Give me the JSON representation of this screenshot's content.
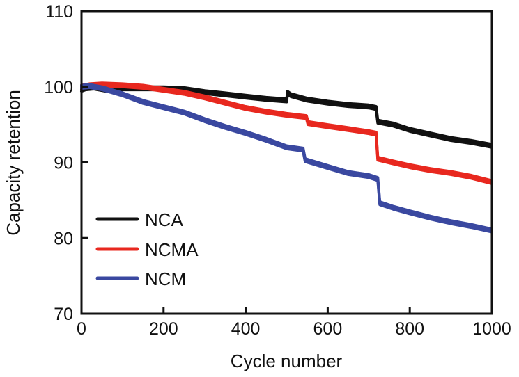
{
  "chart_data": {
    "type": "line",
    "title": "",
    "xlabel": "Cycle number",
    "ylabel": "Capacity retention",
    "xlim": [
      0,
      1000
    ],
    "ylim": [
      70,
      110
    ],
    "xticks": [
      0,
      200,
      400,
      600,
      800,
      1000
    ],
    "yticks": [
      70,
      80,
      90,
      100,
      110
    ],
    "grid": false,
    "legend_position": "lower-left",
    "series": [
      {
        "name": "NCA",
        "color": "#111111",
        "x": [
          0,
          10,
          30,
          50,
          80,
          100,
          150,
          200,
          250,
          300,
          350,
          400,
          450,
          500,
          502,
          510,
          550,
          600,
          650,
          700,
          718,
          722,
          760,
          800,
          850,
          900,
          950,
          1000
        ],
        "y": [
          99.6,
          99.8,
          99.9,
          99.7,
          99.4,
          99.8,
          99.8,
          99.8,
          99.7,
          99.3,
          99.0,
          98.7,
          98.4,
          98.2,
          99.2,
          98.9,
          98.3,
          97.9,
          97.6,
          97.4,
          97.2,
          95.4,
          95.0,
          94.3,
          93.7,
          93.1,
          92.7,
          92.2
        ]
      },
      {
        "name": "NCMA",
        "color": "#e8281f",
        "x": [
          0,
          20,
          50,
          100,
          150,
          200,
          250,
          300,
          350,
          400,
          450,
          500,
          548,
          552,
          600,
          650,
          700,
          718,
          722,
          760,
          800,
          850,
          900,
          950,
          1000
        ],
        "y": [
          100.0,
          100.2,
          100.3,
          100.2,
          100.0,
          99.6,
          99.2,
          98.6,
          97.9,
          97.2,
          96.7,
          96.3,
          96.0,
          95.2,
          94.8,
          94.4,
          94.0,
          93.8,
          90.5,
          90.0,
          89.5,
          89.0,
          88.6,
          88.1,
          87.4
        ]
      },
      {
        "name": "NCM",
        "color": "#3a48a0",
        "x": [
          0,
          20,
          50,
          100,
          150,
          200,
          250,
          300,
          350,
          400,
          450,
          500,
          540,
          545,
          600,
          650,
          700,
          722,
          727,
          760,
          800,
          850,
          900,
          950,
          1000
        ],
        "y": [
          100.0,
          100.1,
          99.8,
          99.0,
          98.0,
          97.3,
          96.6,
          95.6,
          94.7,
          93.9,
          93.0,
          92.0,
          91.7,
          90.3,
          89.4,
          88.6,
          88.2,
          87.8,
          84.6,
          84.0,
          83.4,
          82.7,
          82.1,
          81.6,
          81.0
        ]
      }
    ]
  }
}
